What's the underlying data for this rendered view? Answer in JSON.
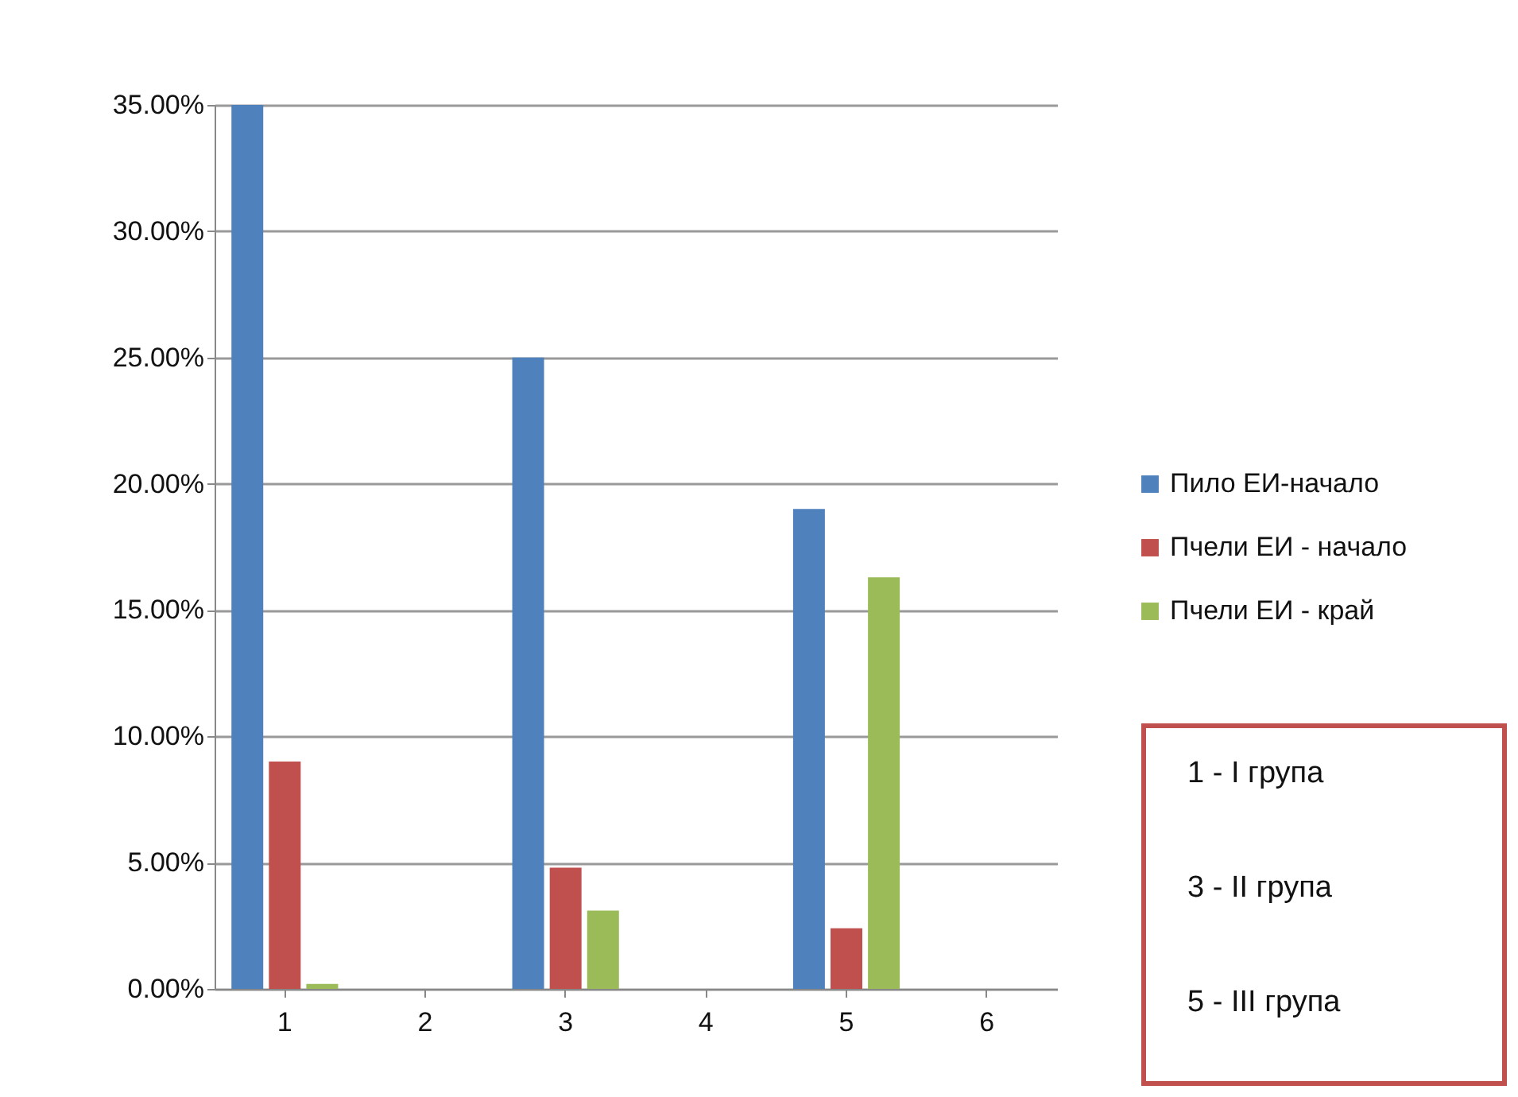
{
  "chart_data": {
    "type": "bar",
    "categories": [
      "1",
      "2",
      "3",
      "4",
      "5",
      "6"
    ],
    "series": [
      {
        "name": "Пило ЕИ-начало",
        "color": "#4f81bd",
        "values": [
          35,
          null,
          25,
          null,
          19,
          null
        ]
      },
      {
        "name": "Пчели ЕИ - начало",
        "color": "#c0504d",
        "values": [
          9,
          null,
          4.8,
          null,
          2.4,
          null
        ]
      },
      {
        "name": "Пчели ЕИ - край",
        "color": "#9bbb59",
        "values": [
          0.2,
          null,
          3.1,
          null,
          16.3,
          null
        ]
      }
    ],
    "ylim": [
      0,
      35
    ],
    "yticks": [
      {
        "value": 0,
        "label": "0.00%"
      },
      {
        "value": 5,
        "label": "5.00%"
      },
      {
        "value": 10,
        "label": "10.00%"
      },
      {
        "value": 15,
        "label": "15.00%"
      },
      {
        "value": 20,
        "label": "20.00%"
      },
      {
        "value": 25,
        "label": "25.00%"
      },
      {
        "value": 30,
        "label": "30.00%"
      },
      {
        "value": 35,
        "label": "35.00%"
      }
    ],
    "grid": "y",
    "legend": "right",
    "annotations": [
      "1 - I група",
      "3 - II група",
      "5 - III група"
    ]
  }
}
